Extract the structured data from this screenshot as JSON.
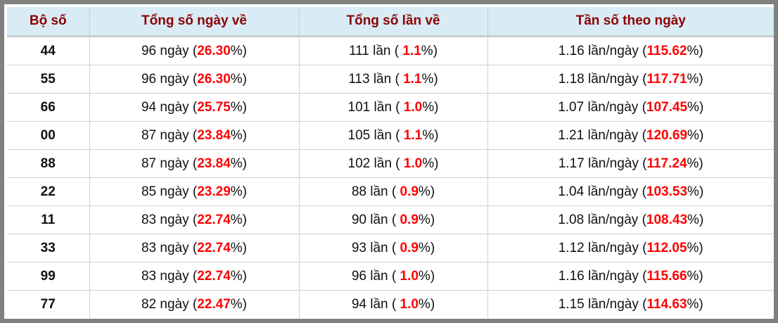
{
  "headers": [
    "Bộ số",
    "Tổng số ngày về",
    "Tổng số lần về",
    "Tần số theo ngày"
  ],
  "units": {
    "days": " ngày (",
    "times": " lần ( ",
    "freq": " lần/ngày (",
    "close": "%)"
  },
  "highlight_color": "#ff0000",
  "rows": [
    {
      "num": "44",
      "days": "96",
      "days_pct": "26.30",
      "times": "111",
      "times_pct": "1.1",
      "freq": "1.16",
      "freq_pct": "115.62"
    },
    {
      "num": "55",
      "days": "96",
      "days_pct": "26.30",
      "times": "113",
      "times_pct": "1.1",
      "freq": "1.18",
      "freq_pct": "117.71"
    },
    {
      "num": "66",
      "days": "94",
      "days_pct": "25.75",
      "times": "101",
      "times_pct": "1.0",
      "freq": "1.07",
      "freq_pct": "107.45"
    },
    {
      "num": "00",
      "days": "87",
      "days_pct": "23.84",
      "times": "105",
      "times_pct": "1.1",
      "freq": "1.21",
      "freq_pct": "120.69"
    },
    {
      "num": "88",
      "days": "87",
      "days_pct": "23.84",
      "times": "102",
      "times_pct": "1.0",
      "freq": "1.17",
      "freq_pct": "117.24"
    },
    {
      "num": "22",
      "days": "85",
      "days_pct": "23.29",
      "times": "88",
      "times_pct": "0.9",
      "freq": "1.04",
      "freq_pct": "103.53"
    },
    {
      "num": "11",
      "days": "83",
      "days_pct": "22.74",
      "times": "90",
      "times_pct": "0.9",
      "freq": "1.08",
      "freq_pct": "108.43"
    },
    {
      "num": "33",
      "days": "83",
      "days_pct": "22.74",
      "times": "93",
      "times_pct": "0.9",
      "freq": "1.12",
      "freq_pct": "112.05"
    },
    {
      "num": "99",
      "days": "83",
      "days_pct": "22.74",
      "times": "96",
      "times_pct": "1.0",
      "freq": "1.16",
      "freq_pct": "115.66"
    },
    {
      "num": "77",
      "days": "82",
      "days_pct": "22.47",
      "times": "94",
      "times_pct": "1.0",
      "freq": "1.15",
      "freq_pct": "114.63"
    }
  ]
}
